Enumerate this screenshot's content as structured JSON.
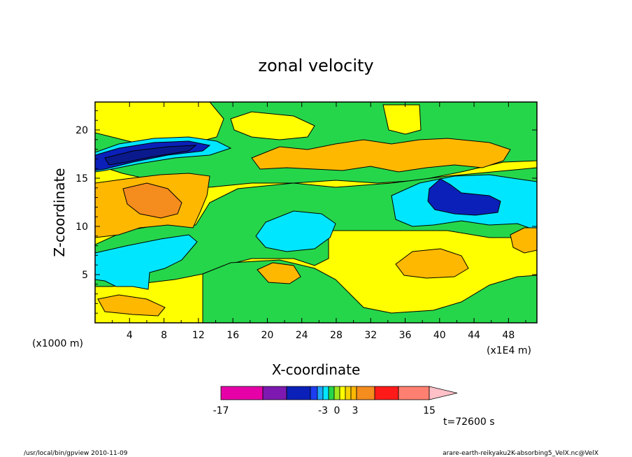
{
  "chart_data": {
    "type": "heatmap",
    "title": "zonal velocity",
    "xlabel": "X-coordinate",
    "ylabel": "Z-coordinate",
    "x_unit_label": "(x1E4 m)",
    "y_unit_label": "(x1000 m)",
    "x_ticks": [
      "4",
      "8",
      "12",
      "16",
      "20",
      "24",
      "28",
      "32",
      "36",
      "40",
      "44",
      "48"
    ],
    "y_ticks": [
      "5",
      "10",
      "15",
      "20"
    ],
    "xlim": [
      0,
      51.3
    ],
    "ylim": [
      0,
      22.9
    ],
    "colorbar": {
      "tick_labels": [
        "-17",
        "-3",
        "0",
        "3",
        "15"
      ],
      "bands": [
        "#e600a8",
        "#7d19b0",
        "#0a20b8",
        "#1d3df0",
        "#1ea8ff",
        "#00e6ff",
        "#26d64a",
        "#9ee81d",
        "#ffff00",
        "#f5d200",
        "#ffb800",
        "#f58c1e",
        "#ff1a1a",
        "#ff8070",
        "#ffc0c8"
      ]
    },
    "fills": {
      "background": "#ffff00",
      "green": "#26d64a",
      "orange": "#ffb800",
      "dark_orange": "#f58c1e",
      "cyan": "#00e6ff",
      "blue": "#0a20b8",
      "navy": "#0a1a8c"
    },
    "time_label": "t=72600 s"
  },
  "footer": {
    "left": "/usr/local/bin/gpview  2010-11-09",
    "right": "arare-earth-reikyaku2K-absorbing5_VelX.nc@VelX"
  }
}
